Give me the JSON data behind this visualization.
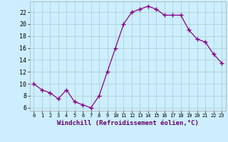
{
  "x": [
    0,
    1,
    2,
    3,
    4,
    5,
    6,
    7,
    8,
    9,
    10,
    11,
    12,
    13,
    14,
    15,
    16,
    17,
    18,
    19,
    20,
    21,
    22,
    23
  ],
  "y": [
    10,
    9,
    8.5,
    7.5,
    9,
    7,
    6.5,
    6,
    8,
    12,
    16,
    20,
    22,
    22.5,
    23,
    22.5,
    21.5,
    21.5,
    21.5,
    19,
    17.5,
    17,
    15,
    13.5
  ],
  "line_color": "#880088",
  "marker": "+",
  "marker_size": 4,
  "marker_lw": 1.0,
  "bg_color": "#cceeff",
  "grid_color": "#aacccc",
  "xlabel": "Windchill (Refroidissement éolien,°C)",
  "xlabel_fontsize": 6.5,
  "ylabel_ticks": [
    6,
    8,
    10,
    12,
    14,
    16,
    18,
    20,
    22
  ],
  "xlim": [
    -0.5,
    23.5
  ],
  "ylim": [
    5.5,
    23.8
  ],
  "xtick_labels": [
    "0",
    "1",
    "2",
    "3",
    "4",
    "5",
    "6",
    "7",
    "8",
    "9",
    "10",
    "11",
    "12",
    "13",
    "14",
    "15",
    "16",
    "17",
    "18",
    "19",
    "20",
    "21",
    "22",
    "23"
  ]
}
